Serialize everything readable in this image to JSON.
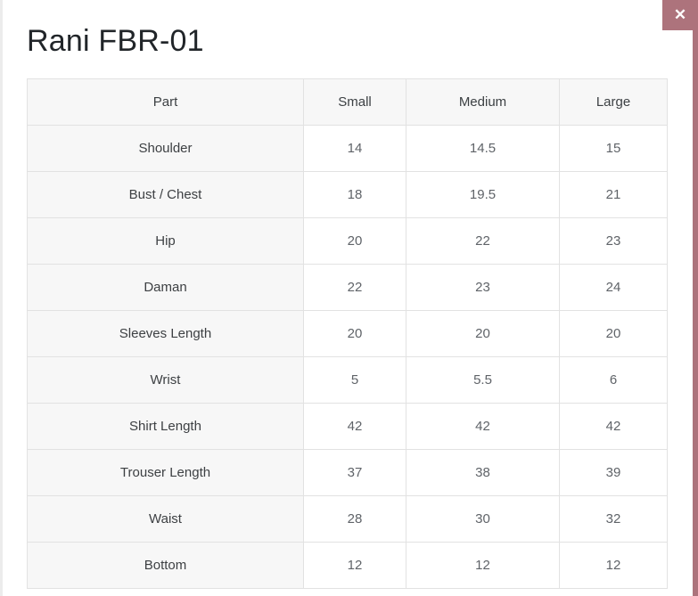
{
  "modal": {
    "title": "Rani FBR-01",
    "close_icon": "✕"
  },
  "size_chart": {
    "columns": [
      "Part",
      "Small",
      "Medium",
      "Large"
    ],
    "rows": [
      {
        "part": "Shoulder",
        "small": "14",
        "medium": "14.5",
        "large": "15"
      },
      {
        "part": "Bust / Chest",
        "small": "18",
        "medium": "19.5",
        "large": "21"
      },
      {
        "part": "Hip",
        "small": "20",
        "medium": "22",
        "large": "23"
      },
      {
        "part": "Daman",
        "small": "22",
        "medium": "23",
        "large": "24"
      },
      {
        "part": "Sleeves Length",
        "small": "20",
        "medium": "20",
        "large": "20"
      },
      {
        "part": "Wrist",
        "small": "5",
        "medium": "5.5",
        "large": "6"
      },
      {
        "part": "Shirt Length",
        "small": "42",
        "medium": "42",
        "large": "42"
      },
      {
        "part": "Trouser Length",
        "small": "37",
        "medium": "38",
        "large": "39"
      },
      {
        "part": "Waist",
        "small": "28",
        "medium": "30",
        "large": "32"
      },
      {
        "part": "Bottom",
        "small": "12",
        "medium": "12",
        "large": "12"
      }
    ]
  },
  "colors": {
    "accent": "#ad737c",
    "header_bg": "#f7f7f7",
    "table_border": "#e2e2e2"
  }
}
